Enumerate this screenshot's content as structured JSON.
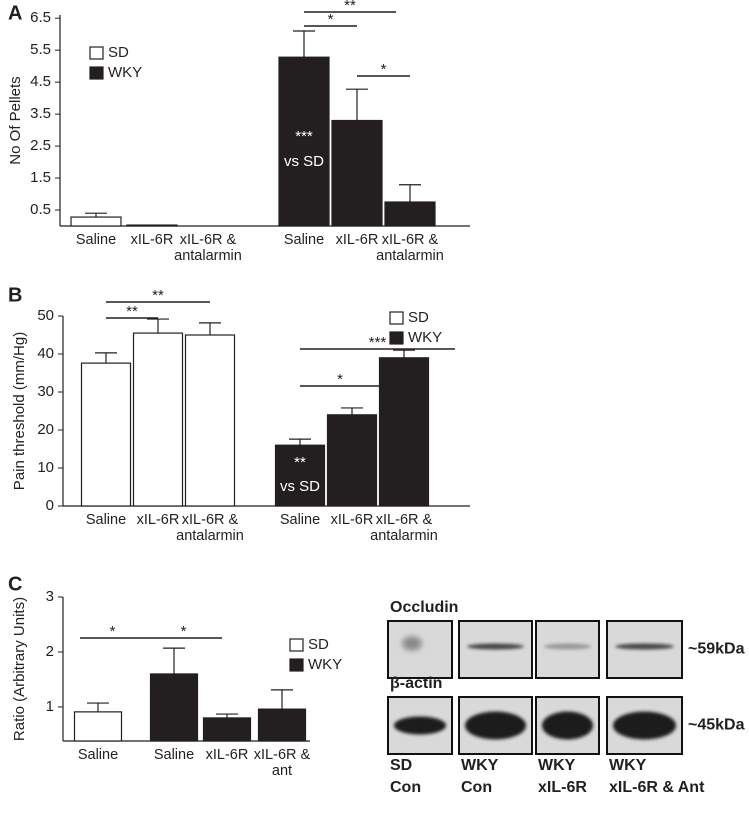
{
  "chart_data": [
    {
      "type": "bar",
      "label": "A",
      "ylabel": "No Of Pellets",
      "categories": [
        "Saline",
        "xIL-6R",
        "xIL-6R & antalarmin"
      ],
      "series": [
        {
          "name": "SD",
          "color": "#ffffff",
          "values": [
            0.28,
            0.03,
            0
          ],
          "errors": [
            0.12,
            0,
            0
          ]
        },
        {
          "name": "WKY",
          "color": "#231f20",
          "values": [
            5.28,
            3.3,
            0.75
          ],
          "errors": [
            0.82,
            0.98,
            0.54
          ]
        }
      ],
      "ylim": [
        0,
        6.6
      ],
      "yticks": [
        0.5,
        1.5,
        2.5,
        3.5,
        4.5,
        5.5,
        6.5
      ],
      "legend": "upper left",
      "annotations": [
        "**",
        "*",
        "*",
        "***",
        "vs SD"
      ]
    },
    {
      "type": "bar",
      "label": "B",
      "ylabel": "Pain threshold (mm/Hg)",
      "categories": [
        "Saline",
        "xIL-6R",
        "xIL-6R & antalarmin"
      ],
      "series": [
        {
          "name": "SD",
          "color": "#ffffff",
          "values": [
            37.6,
            45.5,
            45
          ],
          "errors": [
            2.7,
            3.7,
            3.2
          ]
        },
        {
          "name": "WKY",
          "color": "#231f20",
          "values": [
            16,
            24,
            39
          ],
          "errors": [
            1.6,
            1.8,
            2
          ]
        }
      ],
      "ylim": [
        0,
        50
      ],
      "yticks": [
        0,
        10,
        20,
        30,
        40,
        50
      ],
      "legend": "upper right",
      "annotations": [
        "**",
        "**",
        "*",
        "***",
        "**",
        "vs SD"
      ]
    },
    {
      "type": "bar",
      "label": "C",
      "ylabel": "Ratio (Arbitrary Units)",
      "categories": [
        "Saline",
        "Saline",
        "xIL-6R",
        "xIL-6R & ant"
      ],
      "series": [
        {
          "name": "SD",
          "color": "#ffffff",
          "values": [
            0.91,
            null,
            null,
            null
          ],
          "errors": [
            0.16,
            null,
            null,
            null
          ]
        },
        {
          "name": "WKY",
          "color": "#231f20",
          "values": [
            null,
            1.6,
            0.8,
            0.96
          ],
          "errors": [
            null,
            0.47,
            0.07,
            0.35
          ]
        }
      ],
      "ylim": [
        0.38,
        3
      ],
      "yticks": [
        1,
        2,
        3
      ],
      "legend": "right",
      "annotations": [
        "*",
        "*"
      ]
    }
  ],
  "blot": {
    "rows": [
      "Occludin",
      "β-actin"
    ],
    "sizes": [
      "~59kDa",
      "~45kDa"
    ],
    "lanes": [
      {
        "group": "SD",
        "treatment": "Con"
      },
      {
        "group": "WKY",
        "treatment": "Con"
      },
      {
        "group": "WKY",
        "treatment": "xIL-6R"
      },
      {
        "group": "WKY",
        "treatment": "xIL-6R & Ant"
      }
    ]
  }
}
